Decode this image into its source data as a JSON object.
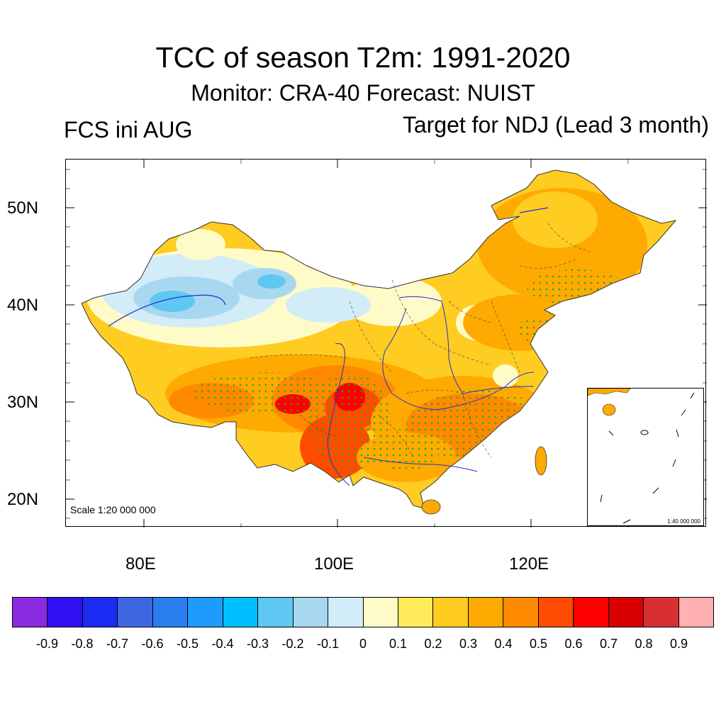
{
  "title": "TCC of season T2m: 1991-2020",
  "subtitle": "Monitor: CRA-40   Forecast: NUIST",
  "left_label": "FCS ini AUG",
  "right_label": "Target for NDJ (Lead 3 month)",
  "lat_labels": [
    "50N",
    "40N",
    "30N",
    "20N"
  ],
  "lon_labels": [
    "80E",
    "100E",
    "120E"
  ],
  "scale_text": "Scale 1:20 000 000",
  "inset_scale_text": "1:40 000 000",
  "colorbar": {
    "colors": [
      "#8a2be2",
      "#3010f0",
      "#1a2cf2",
      "#3e66e0",
      "#2a7ff0",
      "#1e9bff",
      "#00bfff",
      "#5ec8f2",
      "#a8d8f0",
      "#d2ecf8",
      "#fffbc8",
      "#ffeb5a",
      "#ffcc22",
      "#ffaa00",
      "#ff8a00",
      "#ff4c00",
      "#ff0000",
      "#d80000",
      "#d83030",
      "#ffb0b0"
    ],
    "labels": [
      "-0.9",
      "-0.8",
      "-0.7",
      "-0.6",
      "-0.5",
      "-0.4",
      "-0.3",
      "-0.2",
      "-0.1",
      "0",
      "0.1",
      "0.2",
      "0.3",
      "0.4",
      "0.5",
      "0.6",
      "0.7",
      "0.8",
      "0.9"
    ]
  }
}
